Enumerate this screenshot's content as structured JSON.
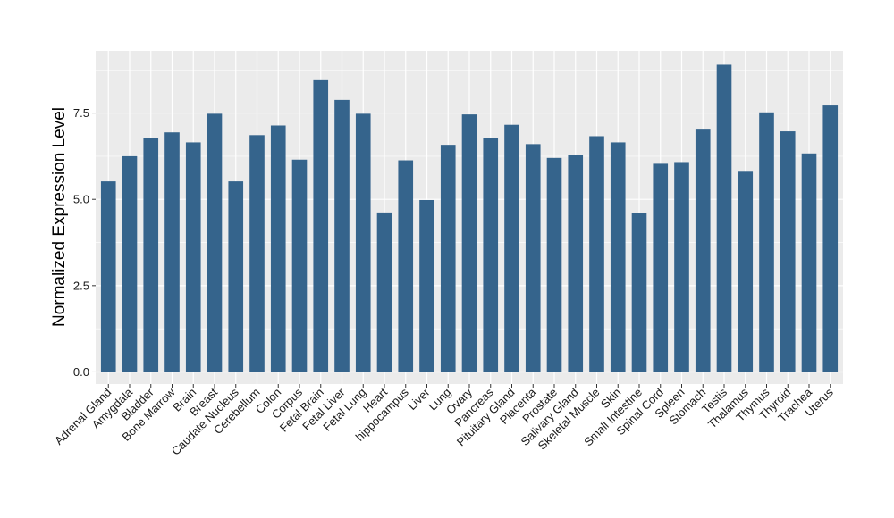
{
  "chart_data": {
    "type": "bar",
    "title": "",
    "xlabel": "",
    "ylabel": "Normalized Expression Level",
    "ylim": [
      -0.35,
      9.3
    ],
    "yticks": [
      0.0,
      2.5,
      5.0,
      7.5
    ],
    "ytick_labels": [
      "0.0",
      "2.5",
      "5.0",
      "7.5"
    ],
    "grid": true,
    "legend": "none",
    "bar_color": "#35648C",
    "panel_background": "#EBEBEB",
    "grid_color": "#FFFFFF",
    "categories": [
      "Adrenal Gland",
      "Amygdala",
      "Bladder",
      "Bone Marrow",
      "Brain",
      "Breast",
      "Caudate Nucleus",
      "Cerebellum",
      "Colon",
      "Corpus",
      "Fetal Brain",
      "Fetal Liver",
      "Fetal Lung",
      "Heart",
      "hippocampus",
      "Liver",
      "Lung",
      "Ovary",
      "Pancreas",
      "Pituitary Gland",
      "Placenta",
      "Prostate",
      "Salivary Gland",
      "Skeletal Muscle",
      "Skin",
      "Small Intestine",
      "Spinal Cord",
      "Spleen",
      "Stomach",
      "Testis",
      "Thalamus",
      "Thymus",
      "Thyroid",
      "Trachea",
      "Uterus"
    ],
    "values": [
      5.52,
      6.25,
      6.78,
      6.94,
      6.65,
      7.48,
      5.52,
      6.86,
      7.14,
      6.15,
      8.45,
      7.88,
      7.48,
      4.62,
      6.13,
      4.98,
      6.58,
      7.46,
      6.78,
      7.16,
      6.6,
      6.2,
      6.28,
      6.83,
      6.65,
      4.6,
      6.03,
      6.08,
      7.02,
      8.9,
      5.8,
      7.52,
      6.97,
      6.33,
      7.72
    ]
  }
}
